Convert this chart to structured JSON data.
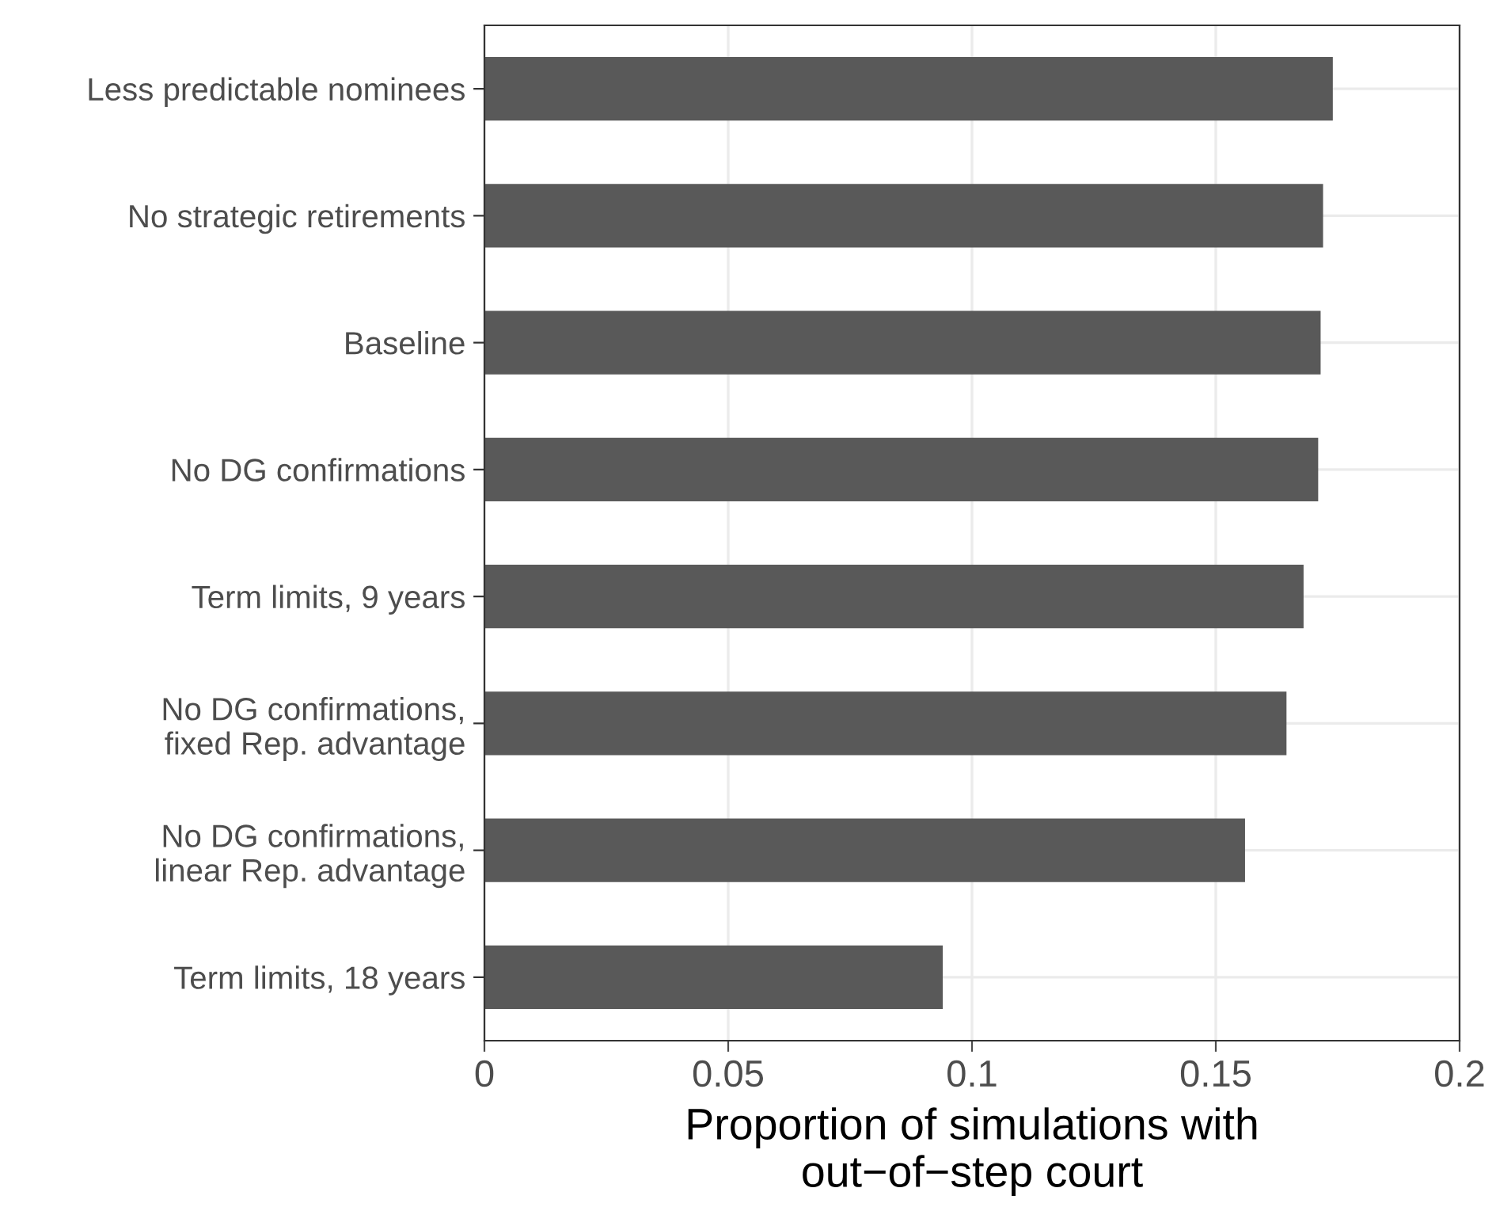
{
  "chart_data": {
    "type": "bar",
    "orientation": "horizontal",
    "categories": [
      "Less predictable nominees",
      "No strategic retirements",
      "Baseline",
      "No DG confirmations",
      "Term limits, 9 years",
      "No DG confirmations,\nfixed Rep. advantage",
      "No DG confirmations,\nlinear Rep. advantage",
      "Term limits, 18 years"
    ],
    "values": [
      0.174,
      0.172,
      0.1715,
      0.171,
      0.168,
      0.1645,
      0.156,
      0.094
    ],
    "color": "#595959",
    "xlabel": "Proportion of simulations with\nout−of−step court",
    "xlim": [
      0,
      0.2
    ],
    "xticks": [
      0,
      0.05,
      0.1,
      0.15,
      0.2
    ],
    "grid": true
  }
}
